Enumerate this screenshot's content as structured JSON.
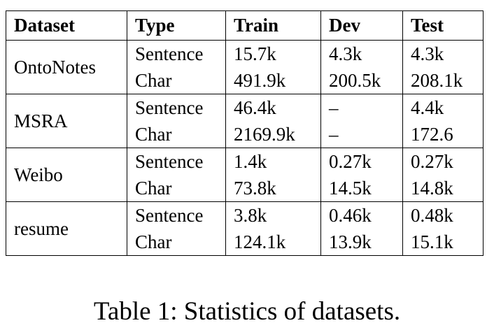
{
  "table": {
    "header": [
      "Dataset",
      "Type",
      "Train",
      "Dev",
      "Test"
    ],
    "groups": [
      {
        "dataset": "OntoNotes",
        "rows": [
          [
            "Sentence",
            "15.7k",
            "4.3k",
            "4.3k"
          ],
          [
            "Char",
            "491.9k",
            "200.5k",
            "208.1k"
          ]
        ]
      },
      {
        "dataset": "MSRA",
        "rows": [
          [
            "Sentence",
            "46.4k",
            "–",
            "4.4k"
          ],
          [
            "Char",
            "2169.9k",
            "–",
            "172.6"
          ]
        ]
      },
      {
        "dataset": "Weibo",
        "rows": [
          [
            "Sentence",
            "1.4k",
            "0.27k",
            "0.27k"
          ],
          [
            "Char",
            "73.8k",
            "14.5k",
            "14.8k"
          ]
        ]
      },
      {
        "dataset": "resume",
        "rows": [
          [
            "Sentence",
            "3.8k",
            "0.46k",
            "0.48k"
          ],
          [
            "Char",
            "124.1k",
            "13.9k",
            "15.1k"
          ]
        ]
      }
    ]
  },
  "caption": "Table 1: Statistics of datasets."
}
